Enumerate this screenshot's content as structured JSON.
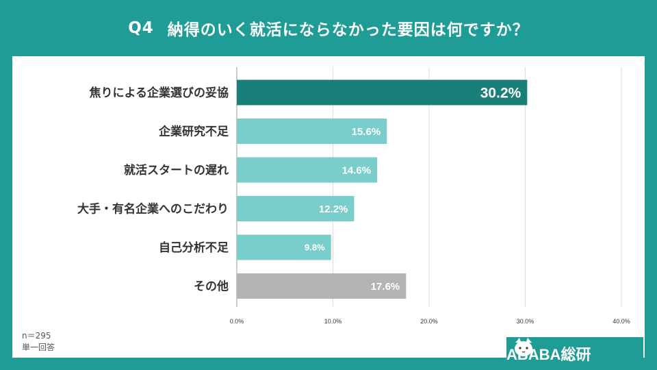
{
  "title": {
    "label": "Q4",
    "text": "納得のいく就活にならなかった要因は何ですか？"
  },
  "footnote": {
    "n": "n＝295",
    "type": "単一回答"
  },
  "brand": {
    "name": "ABABA総研"
  },
  "colors": {
    "background": "#1f9c95",
    "highlight": "#1a7f78",
    "bar": "#79cdcb",
    "other": "#b3b3b3",
    "grid": "#dddddd",
    "text": "#333333"
  },
  "chart_data": {
    "type": "bar",
    "orientation": "horizontal",
    "categories": [
      "焦りによる企業選びの妥協",
      "企業研究不足",
      "就活スタートの遅れ",
      "大手・有名企業へのこだわり",
      "自己分析不足",
      "その他"
    ],
    "values": [
      30.2,
      15.6,
      14.6,
      12.2,
      9.8,
      17.6
    ],
    "value_labels": [
      "30.2%",
      "15.6%",
      "14.6%",
      "12.2%",
      "9.8%",
      "17.6%"
    ],
    "xlim": [
      0,
      40
    ],
    "xticks": [
      "0.0%",
      "10.0%",
      "20.0%",
      "30.0%",
      "40.0%"
    ],
    "grid": true
  }
}
